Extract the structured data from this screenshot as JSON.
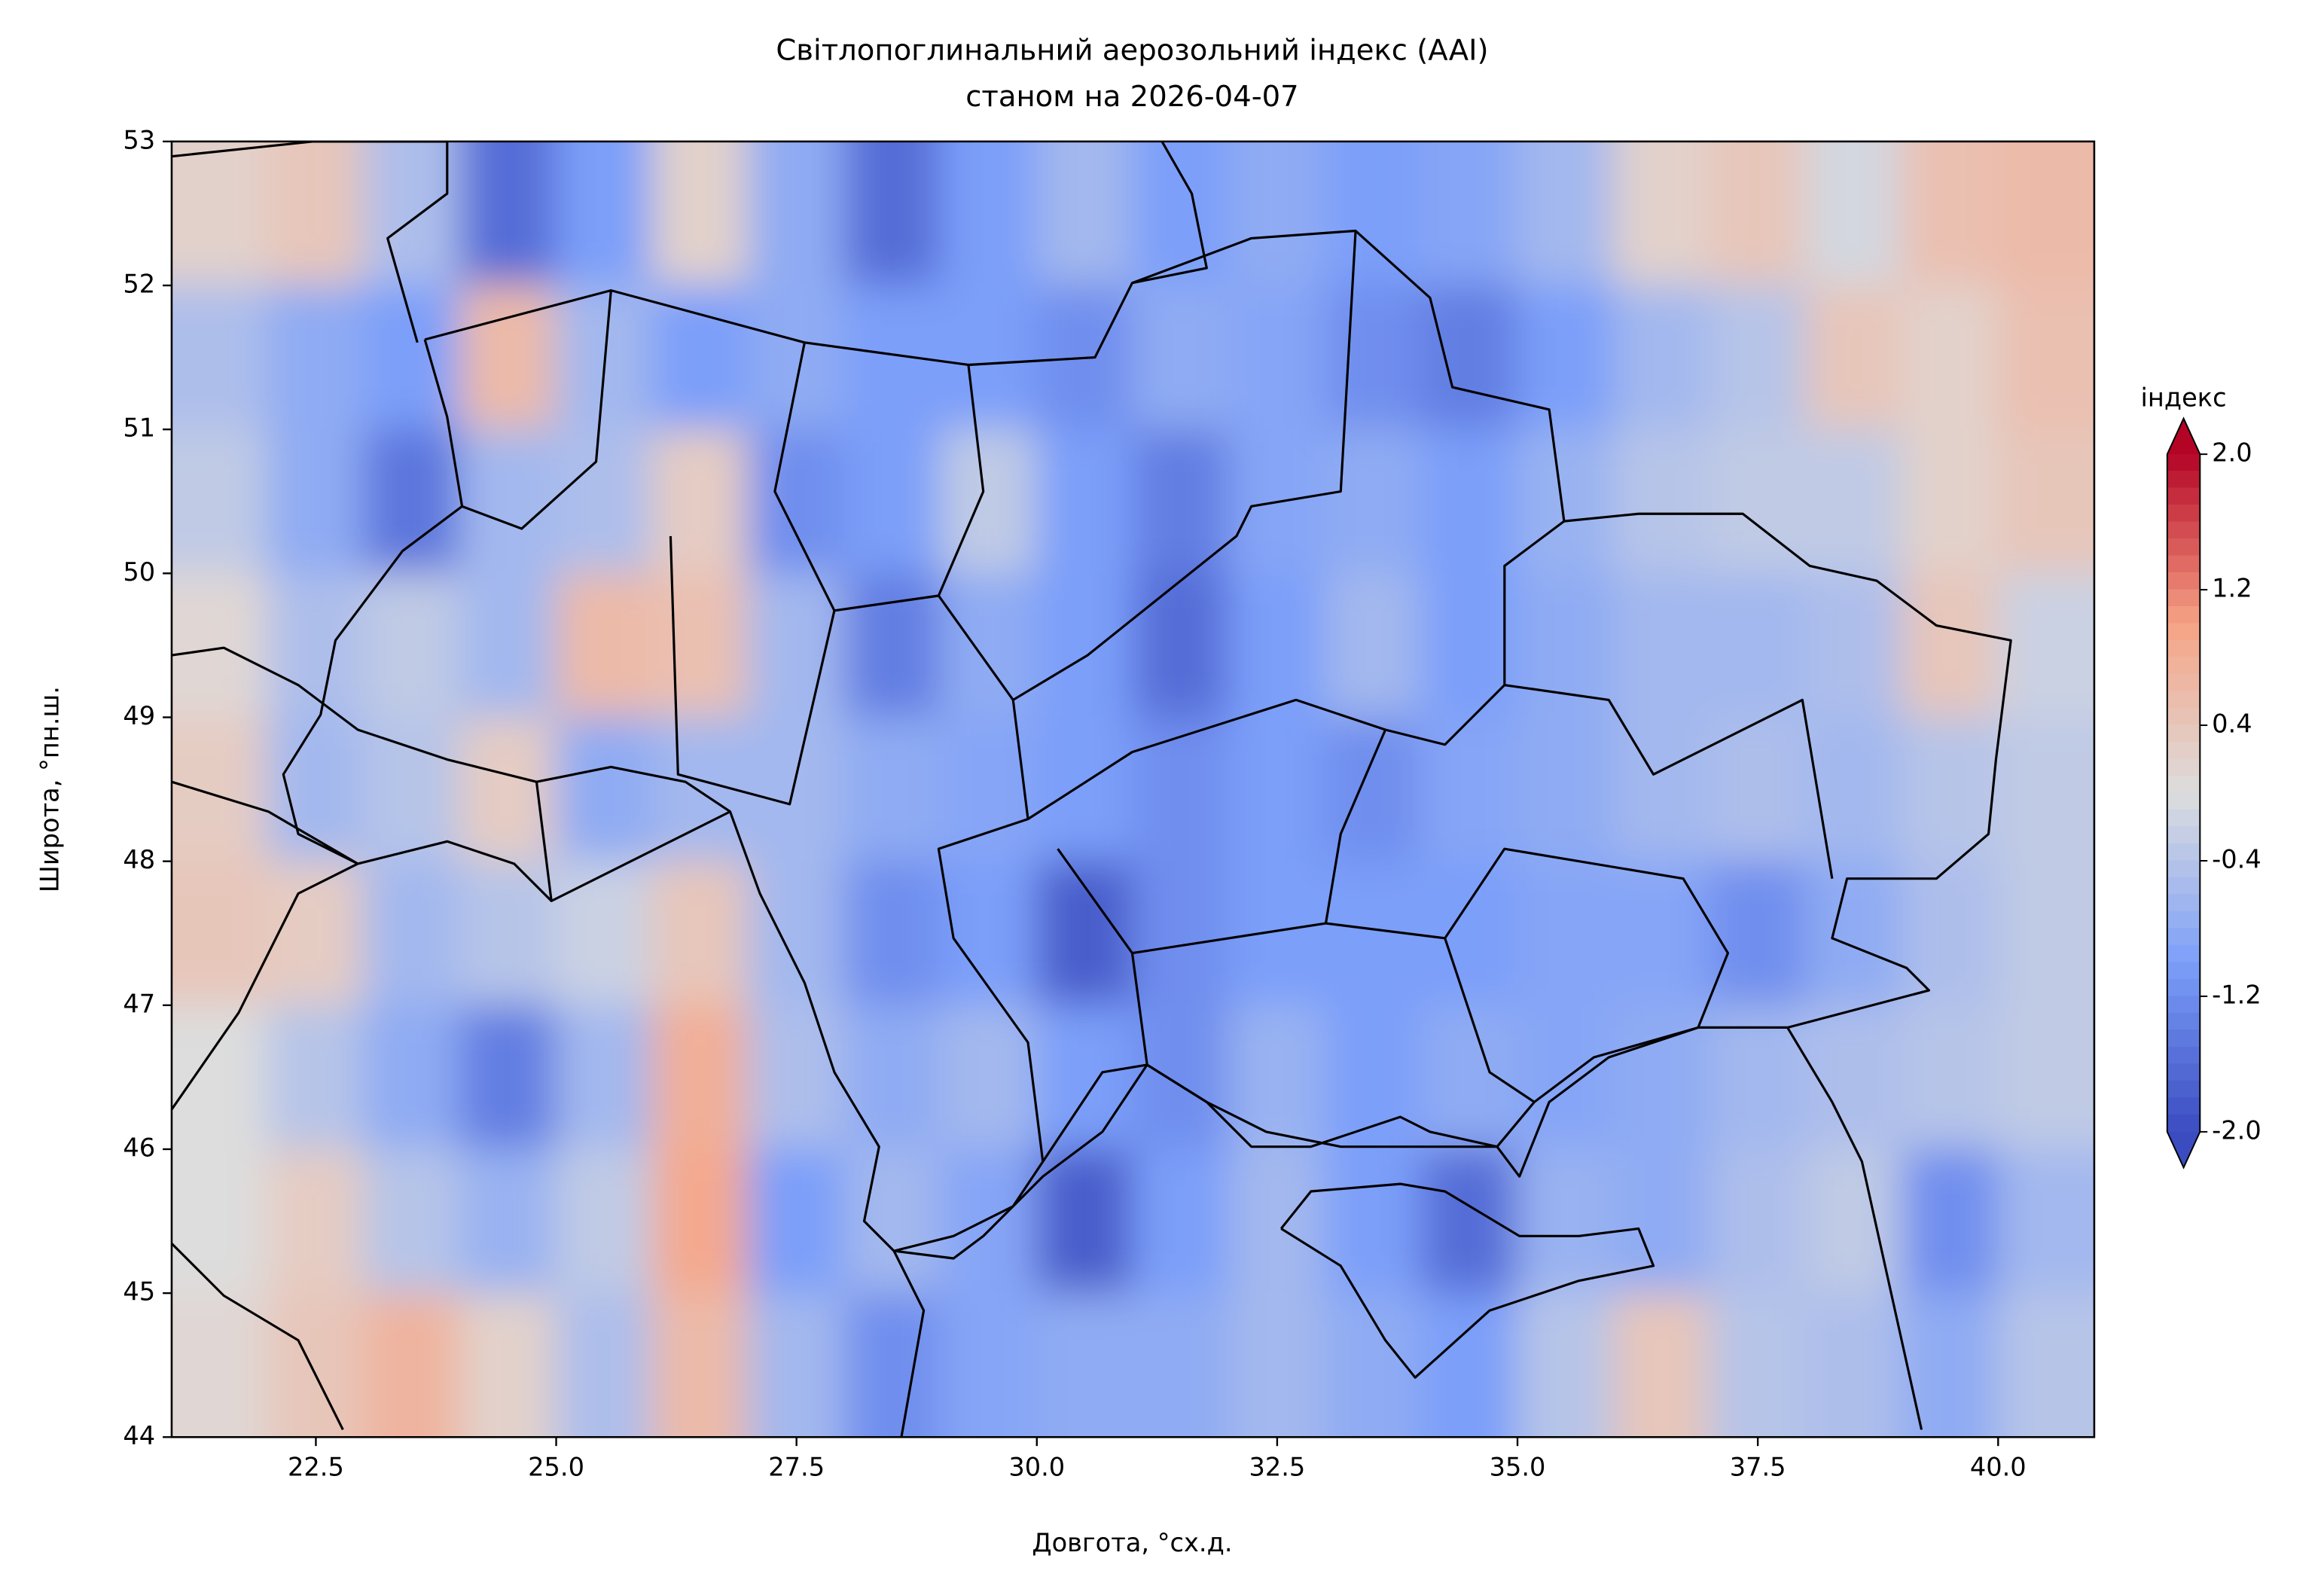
{
  "chart_data": {
    "type": "heatmap",
    "title": "Світлопоглинальний аерозольний індекс (AAI)",
    "subtitle": "станом на 2026-04-07",
    "xlabel": "Довгота, °сх.д.",
    "ylabel": "Широта, °пн.ш.",
    "xlim": [
      21,
      41
    ],
    "ylim": [
      44,
      53
    ],
    "xticks": [
      22.5,
      {
        "value": 25,
        "label": "25.0"
      },
      27.5,
      {
        "value": 30,
        "label": "30.0"
      },
      32.5,
      {
        "value": 35,
        "label": "35.0"
      },
      37.5,
      {
        "value": 40,
        "label": "40.0"
      }
    ],
    "yticks": [
      44,
      45,
      46,
      47,
      48,
      49,
      50,
      51,
      52,
      53
    ],
    "colormap": "coolwarm",
    "colorbar_label": "індекс",
    "clim": [
      -2,
      2
    ],
    "colorbar_ticks": [
      {
        "value": -2,
        "label": "-2.0"
      },
      -1.2,
      -0.4,
      0.4,
      1.2,
      {
        "value": 2,
        "label": "2.0"
      }
    ],
    "x": [
      21.5,
      22.5,
      23.5,
      24.5,
      25.5,
      26.5,
      27.5,
      28.5,
      29.5,
      30.5,
      31.5,
      32.5,
      33.5,
      34.5,
      35.5,
      36.5,
      37.5,
      38.5,
      39.5,
      40.5
    ],
    "y": [
      52.5,
      51.5,
      50.5,
      49.5,
      48.5,
      47.5,
      46.5,
      45.5,
      44.5
    ],
    "values": [
      [
        0.2,
        0.4,
        -0.5,
        -1.6,
        -1.0,
        0.2,
        -0.8,
        -1.6,
        -1.0,
        -0.6,
        -1.0,
        -0.8,
        -1.0,
        -0.9,
        -0.6,
        0.2,
        0.4,
        -0.1,
        0.5,
        0.6
      ],
      [
        -0.5,
        -0.8,
        -1.0,
        0.6,
        -0.6,
        -1.0,
        -0.8,
        -1.0,
        -1.0,
        -1.2,
        -0.8,
        -0.9,
        -1.2,
        -1.4,
        -1.0,
        -0.6,
        -0.4,
        0.4,
        0.2,
        0.5
      ],
      [
        -0.3,
        -0.8,
        -1.5,
        -0.6,
        -0.5,
        0.3,
        -1.2,
        -1.0,
        -0.3,
        -1.0,
        -1.4,
        -0.9,
        -0.8,
        -1.0,
        -0.7,
        -0.4,
        -0.3,
        -0.3,
        0.2,
        0.4
      ],
      [
        0.1,
        -0.5,
        -0.3,
        -0.6,
        0.6,
        0.5,
        -0.6,
        -1.4,
        -0.8,
        -1.0,
        -1.6,
        -1.0,
        -0.6,
        -1.0,
        -0.8,
        -0.6,
        -0.6,
        -0.5,
        0.4,
        -0.2
      ],
      [
        0.3,
        -0.6,
        -0.4,
        0.3,
        -0.8,
        -0.6,
        -0.6,
        -0.8,
        -0.9,
        -1.0,
        -1.2,
        -1.0,
        -1.2,
        -0.9,
        -0.8,
        -0.6,
        -0.5,
        -0.6,
        -0.4,
        -0.3
      ],
      [
        0.4,
        0.3,
        -0.6,
        -0.4,
        -0.2,
        0.4,
        -0.6,
        -1.2,
        -1.0,
        -1.8,
        -1.2,
        -1.0,
        -1.0,
        -1.0,
        -0.9,
        -0.9,
        -1.2,
        -0.8,
        -0.5,
        -0.3
      ],
      [
        0.0,
        -0.4,
        -0.8,
        -1.4,
        -0.6,
        0.8,
        -0.5,
        -0.8,
        -0.6,
        -1.0,
        -1.2,
        -0.7,
        -1.0,
        -0.8,
        -0.9,
        -0.8,
        -0.6,
        -0.5,
        -0.4,
        -0.3
      ],
      [
        0.0,
        0.3,
        -0.4,
        -0.7,
        -0.3,
        0.9,
        -1.0,
        -0.6,
        -0.9,
        -1.8,
        -1.0,
        -0.6,
        -1.0,
        -1.6,
        -0.7,
        -0.8,
        -0.5,
        -0.3,
        -1.2,
        -0.6
      ],
      [
        0.1,
        0.4,
        0.7,
        0.2,
        -0.5,
        0.6,
        -0.6,
        -1.2,
        -0.9,
        -0.8,
        -0.8,
        -0.6,
        -0.8,
        -1.0,
        -0.4,
        0.4,
        -0.4,
        -0.5,
        -0.8,
        -0.4
      ]
    ]
  }
}
